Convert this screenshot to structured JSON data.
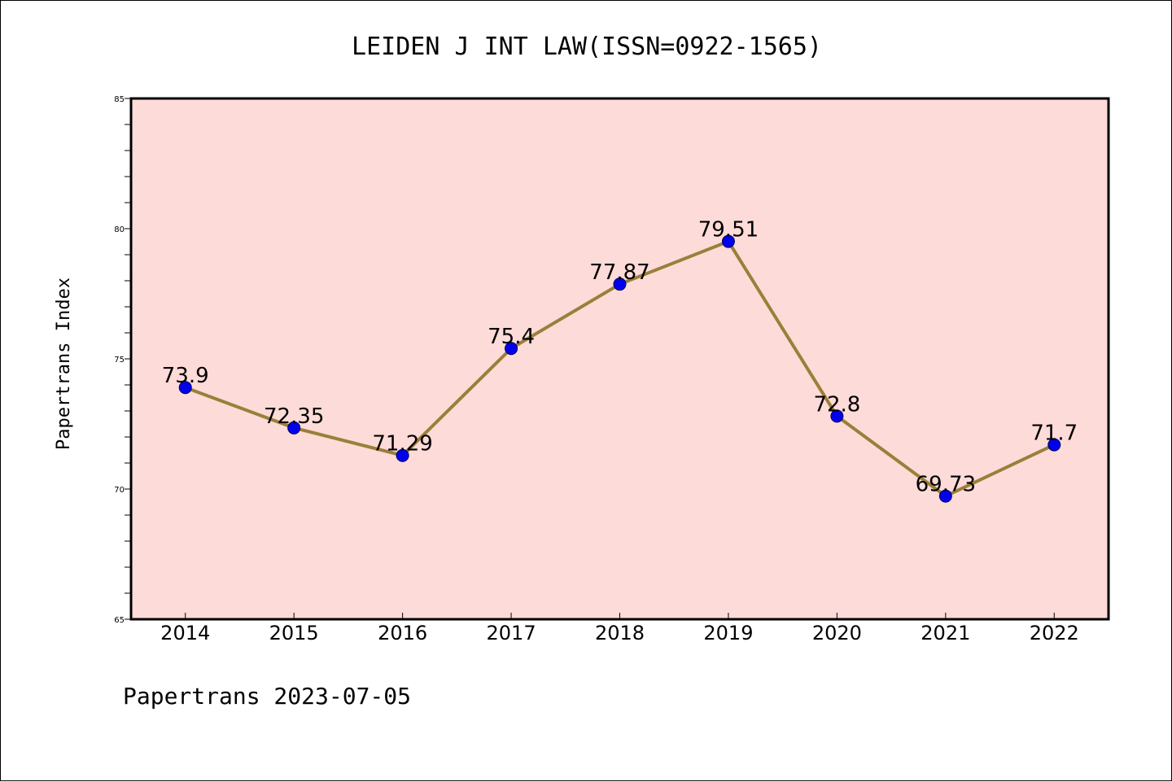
{
  "colors": {
    "plot_background": "#fddbd8",
    "line": "#9a7f3a",
    "marker_fill": "#0000ee",
    "marker_stroke": "#00005a",
    "axis": "#000000"
  },
  "chart_data": {
    "type": "line",
    "title": "LEIDEN J INT LAW(ISSN=0922-1565)",
    "xlabel": "",
    "ylabel": "Papertrans Index",
    "categories": [
      "2014",
      "2015",
      "2016",
      "2017",
      "2018",
      "2019",
      "2020",
      "2021",
      "2022"
    ],
    "series": [
      {
        "values": [
          73.9,
          72.35,
          71.29,
          75.4,
          77.87,
          79.51,
          72.8,
          69.73,
          71.7
        ],
        "labels": [
          "73.9",
          "72.35",
          "71.29",
          "75.4",
          "77.87",
          "79.51",
          "72.8",
          "69.73",
          "71.7"
        ]
      }
    ],
    "ylim": [
      65,
      85
    ],
    "yticks": [
      "65",
      "70",
      "75",
      "80",
      "85"
    ],
    "grid": false,
    "legend": "none"
  },
  "footer": {
    "text": "Papertrans 2023-07-05"
  }
}
